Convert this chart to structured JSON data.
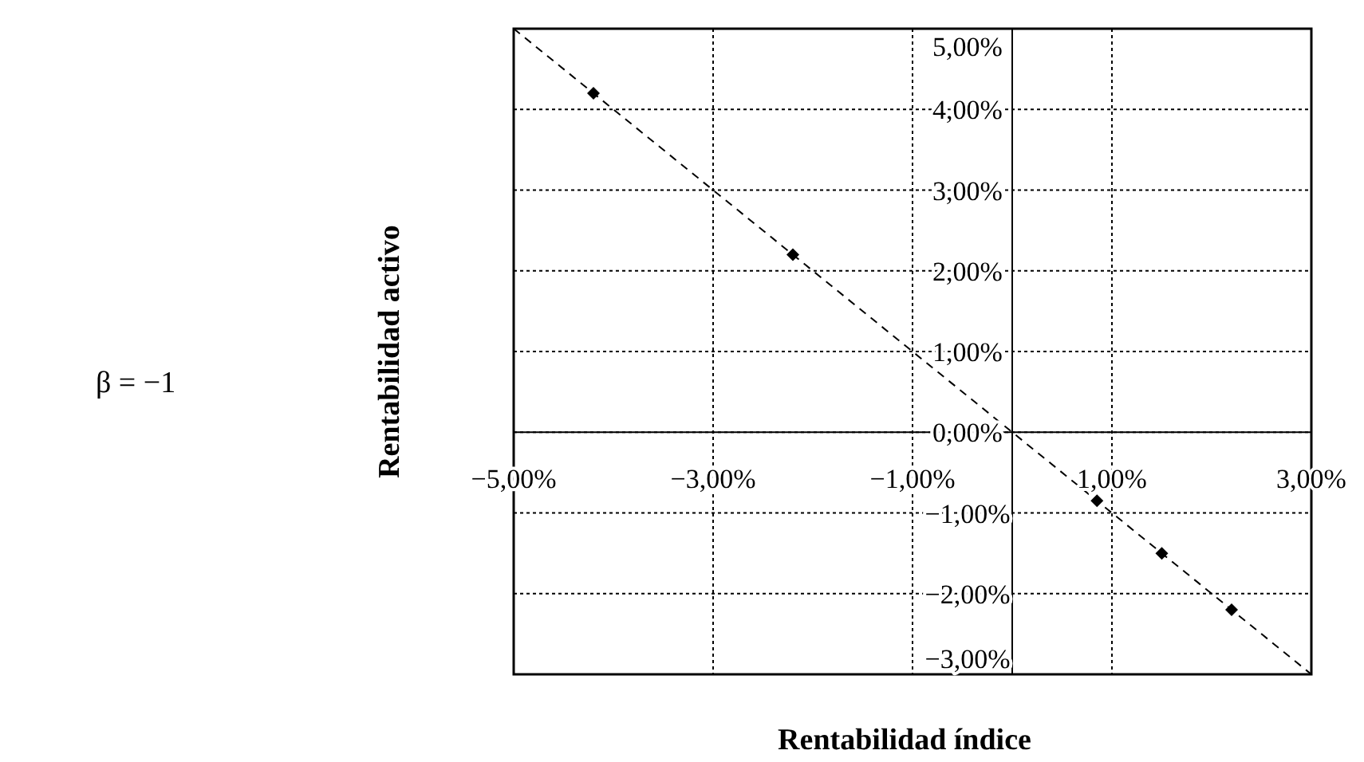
{
  "chart_data": {
    "type": "scatter",
    "xlabel": "Rentabilidad índice",
    "ylabel": "Rentabilidad activo",
    "annotations": [
      "β = −1"
    ],
    "xlim": [
      -5,
      3
    ],
    "ylim": [
      -3,
      5
    ],
    "xticks": [
      {
        "value": -5,
        "label": "−5,00%"
      },
      {
        "value": -3,
        "label": "−3,00%"
      },
      {
        "value": -1,
        "label": "−1,00%"
      },
      {
        "value": 1,
        "label": "1,00%"
      },
      {
        "value": 3,
        "label": "3,00%"
      }
    ],
    "yticks": [
      {
        "value": -3,
        "label": "−3,00%"
      },
      {
        "value": -2,
        "label": "−2,00%"
      },
      {
        "value": -1,
        "label": "−1,00%"
      },
      {
        "value": 0,
        "label": "0,00%"
      },
      {
        "value": 1,
        "label": "1,00%"
      },
      {
        "value": 2,
        "label": "2,00%"
      },
      {
        "value": 3,
        "label": "3,00%"
      },
      {
        "value": 4,
        "label": "4,00%"
      },
      {
        "value": 5,
        "label": "5,00%"
      }
    ],
    "grid": true,
    "series": [
      {
        "type": "scatter",
        "color": "#000000",
        "marker": "diamond",
        "x": [
          -4.2,
          -2.2,
          0.85,
          1.5,
          2.2
        ],
        "values": [
          4.2,
          2.2,
          -0.85,
          -1.5,
          -2.2
        ]
      },
      {
        "type": "line",
        "color": "#000000",
        "line_style": "dashed",
        "marker": "none",
        "x": [
          -5,
          3
        ],
        "values": [
          5,
          -3
        ]
      }
    ]
  }
}
